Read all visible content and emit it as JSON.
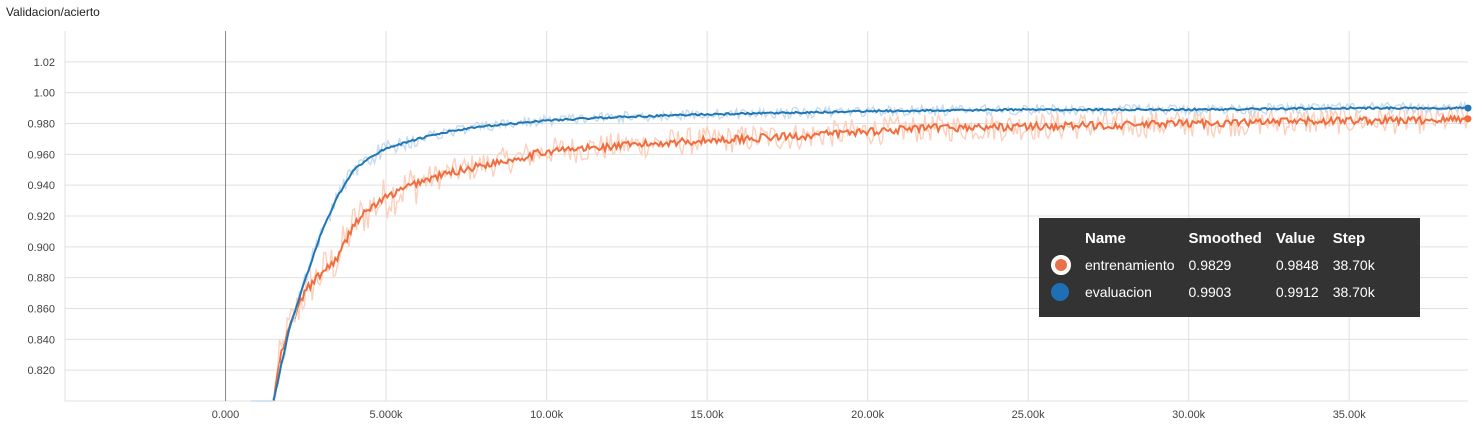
{
  "chart_data": {
    "type": "line",
    "title": "Validacion/acierto",
    "xlabel": "",
    "ylabel": "",
    "xlim": [
      -5000,
      38700
    ],
    "ylim": [
      0.8,
      1.04
    ],
    "x_ticks": [
      0,
      5000,
      10000,
      15000,
      20000,
      25000,
      30000,
      35000
    ],
    "x_tick_labels": [
      "0.000",
      "5.000k",
      "10.00k",
      "15.00k",
      "20.00k",
      "25.00k",
      "30.00k",
      "35.00k"
    ],
    "y_ticks": [
      0.82,
      0.84,
      0.86,
      0.88,
      0.9,
      0.92,
      0.94,
      0.96,
      0.98,
      1.0,
      1.02
    ],
    "y_tick_labels": [
      "0.820",
      "0.840",
      "0.860",
      "0.880",
      "0.900",
      "0.920",
      "0.940",
      "0.960",
      "0.980",
      "1.00",
      "1.02"
    ],
    "grid": true,
    "series": [
      {
        "name": "entrenamiento",
        "color": "#f26d3d",
        "raw_color": "#fcd0bd",
        "smooth_points": [
          [
            1500,
            0.8
          ],
          [
            1700,
            0.828
          ],
          [
            2000,
            0.848
          ],
          [
            2500,
            0.872
          ],
          [
            3000,
            0.883
          ],
          [
            3500,
            0.893
          ],
          [
            4000,
            0.915
          ],
          [
            4500,
            0.925
          ],
          [
            5000,
            0.932
          ],
          [
            6000,
            0.942
          ],
          [
            7000,
            0.948
          ],
          [
            8000,
            0.953
          ],
          [
            9000,
            0.957
          ],
          [
            10000,
            0.962
          ],
          [
            12000,
            0.965
          ],
          [
            14000,
            0.968
          ],
          [
            16000,
            0.97
          ],
          [
            18000,
            0.972
          ],
          [
            20000,
            0.975
          ],
          [
            22000,
            0.977
          ],
          [
            25000,
            0.978
          ],
          [
            28000,
            0.979
          ],
          [
            30000,
            0.98
          ],
          [
            33000,
            0.981
          ],
          [
            35000,
            0.982
          ],
          [
            37000,
            0.982
          ],
          [
            38700,
            0.983
          ]
        ]
      },
      {
        "name": "evaluacion",
        "color": "#1f77b4",
        "raw_color": "#c6dbef",
        "smooth_points": [
          [
            1500,
            0.8
          ],
          [
            1700,
            0.82
          ],
          [
            2000,
            0.848
          ],
          [
            2500,
            0.88
          ],
          [
            3000,
            0.91
          ],
          [
            3500,
            0.933
          ],
          [
            4000,
            0.95
          ],
          [
            4500,
            0.958
          ],
          [
            5000,
            0.964
          ],
          [
            6000,
            0.97
          ],
          [
            7000,
            0.975
          ],
          [
            8000,
            0.978
          ],
          [
            9000,
            0.98
          ],
          [
            10000,
            0.982
          ],
          [
            12000,
            0.984
          ],
          [
            15000,
            0.986
          ],
          [
            18000,
            0.987
          ],
          [
            20000,
            0.988
          ],
          [
            25000,
            0.989
          ],
          [
            30000,
            0.989
          ],
          [
            35000,
            0.99
          ],
          [
            38700,
            0.99
          ]
        ]
      }
    ],
    "legend": {
      "placement": "right",
      "headers": [
        "Name",
        "Smoothed",
        "Value",
        "Step"
      ],
      "rows": [
        {
          "name": "entrenamiento",
          "smoothed": "0.9829",
          "value": "0.9848",
          "step": "38.70k",
          "color": "#e8714a"
        },
        {
          "name": "evaluacion",
          "smoothed": "0.9903",
          "value": "0.9912",
          "step": "38.70k",
          "color": "#1f6fb4"
        }
      ]
    }
  }
}
